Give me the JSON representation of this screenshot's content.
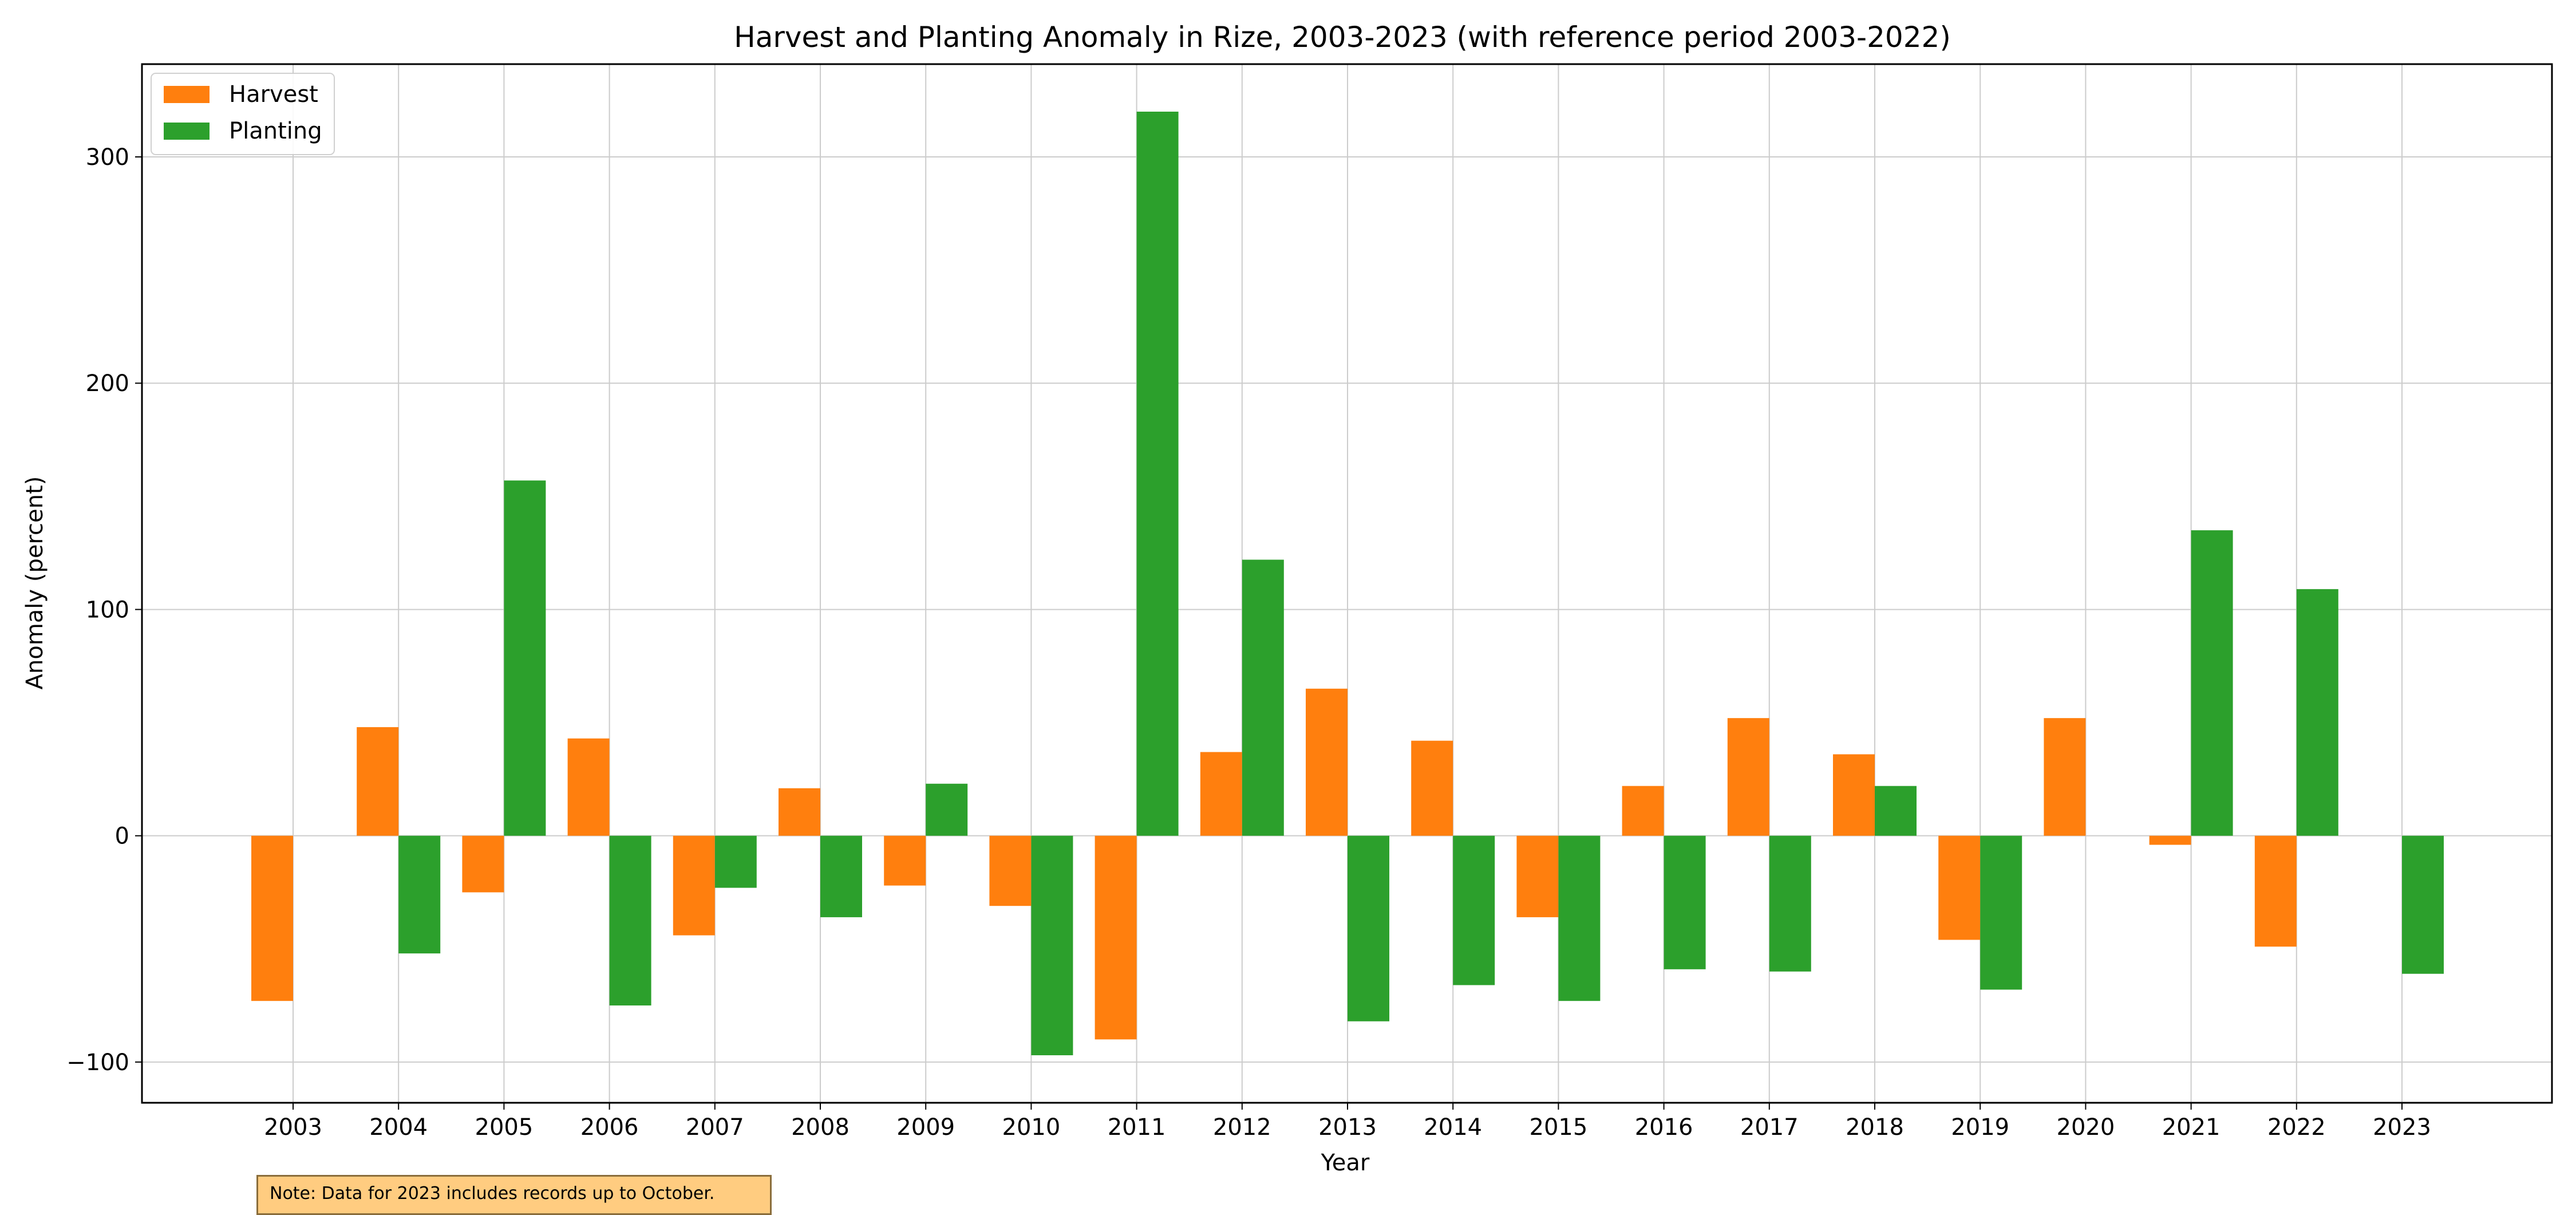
{
  "chart_data": {
    "type": "bar",
    "title": "Harvest and Planting Anomaly in Rize, 2003-2023 (with reference period 2003-2022)",
    "xlabel": "Year",
    "ylabel": "Anomaly (percent)",
    "categories": [
      "2003",
      "2004",
      "2005",
      "2006",
      "2007",
      "2008",
      "2009",
      "2010",
      "2011",
      "2012",
      "2013",
      "2014",
      "2015",
      "2016",
      "2017",
      "2018",
      "2019",
      "2020",
      "2021",
      "2022",
      "2023"
    ],
    "series": [
      {
        "name": "Harvest",
        "color": "#ff7f0e",
        "values": [
          -73,
          48,
          -25,
          43,
          -44,
          21,
          -22,
          -31,
          -90,
          37,
          65,
          42,
          -36,
          22,
          52,
          36,
          -46,
          52,
          -4,
          -49,
          null
        ]
      },
      {
        "name": "Planting",
        "color": "#2ca02c",
        "values": [
          null,
          -52,
          157,
          -75,
          -23,
          -36,
          23,
          -97,
          320,
          122,
          -82,
          -66,
          -73,
          -59,
          -60,
          22,
          -68,
          null,
          135,
          109,
          -61
        ]
      }
    ],
    "ylim": [
      -118,
      341
    ],
    "yticks": [
      -100,
      0,
      100,
      200,
      300
    ],
    "grid": true,
    "legend_position": "top-left",
    "note": "Note: Data for 2023 includes records up to October."
  }
}
